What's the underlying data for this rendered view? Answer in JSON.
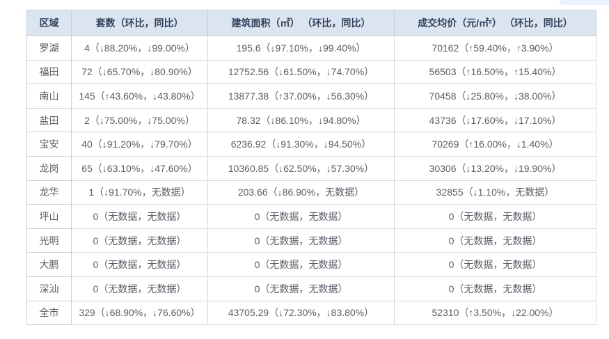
{
  "colors": {
    "header_bg": "#dbe5f1",
    "header_text": "#33415c",
    "cell_text": "#565d66",
    "border": "#c9cdd4",
    "cutoff_button_bg": "#e9f2fc"
  },
  "table": {
    "columns": [
      "区域",
      "套数（环比，同比）",
      "建筑面积（㎡） （环比，同比）",
      "成交均价（元/㎡²） （环比，同比）"
    ],
    "rows": [
      {
        "region": "罗湖",
        "units": "4（↓88.20%，↓99.00%）",
        "area": "195.6（↓97.10%，↓99.40%）",
        "price": "70162（↑59.40%，↑3.90%）"
      },
      {
        "region": "福田",
        "units": "72（↓65.70%，↓80.90%）",
        "area": "12752.56（↓61.50%，↓74.70%）",
        "price": "56503（↑16.50%，↑15.40%）"
      },
      {
        "region": "南山",
        "units": "145（↑43.60%，↓43.80%）",
        "area": "13877.38（↑37.00%，↓56.30%）",
        "price": "70458（↓25.80%，↓38.00%）"
      },
      {
        "region": "盐田",
        "units": "2（↓75.00%，↓75.00%）",
        "area": "78.32（↓86.10%，↓94.80%）",
        "price": "43736（↓17.60%，↓17.10%）"
      },
      {
        "region": "宝安",
        "units": "40（↓91.20%，↓79.70%）",
        "area": "6236.92（↓91.30%，↓94.50%）",
        "price": "70269（↑16.00%，↓1.40%）"
      },
      {
        "region": "龙岗",
        "units": "65（↓63.10%，↓47.60%）",
        "area": "10360.85（↓62.50%，↓57.30%）",
        "price": "30306（↓13.20%，↓19.90%）"
      },
      {
        "region": "龙华",
        "units": "1（↓91.70%，无数据）",
        "area": "203.66（↓86.90%，无数据）",
        "price": "32855（↓1.10%，无数据）"
      },
      {
        "region": "坪山",
        "units": "0（无数据，无数据）",
        "area": "0（无数据，无数据）",
        "price": "0（无数据，无数据）"
      },
      {
        "region": "光明",
        "units": "0（无数据，无数据）",
        "area": "0（无数据，无数据）",
        "price": "0（无数据，无数据）"
      },
      {
        "region": "大鹏",
        "units": "0（无数据，无数据）",
        "area": "0（无数据，无数据）",
        "price": "0（无数据，无数据）"
      },
      {
        "region": "深汕",
        "units": "0（无数据，无数据）",
        "area": "0（无数据，无数据）",
        "price": "0（无数据，无数据）"
      },
      {
        "region": "全市",
        "units": "329（↓68.90%，↓76.60%）",
        "area": "43705.29（↓72.30%，↓83.80%）",
        "price": "52310（↑3.50%，↓22.00%）"
      }
    ]
  }
}
